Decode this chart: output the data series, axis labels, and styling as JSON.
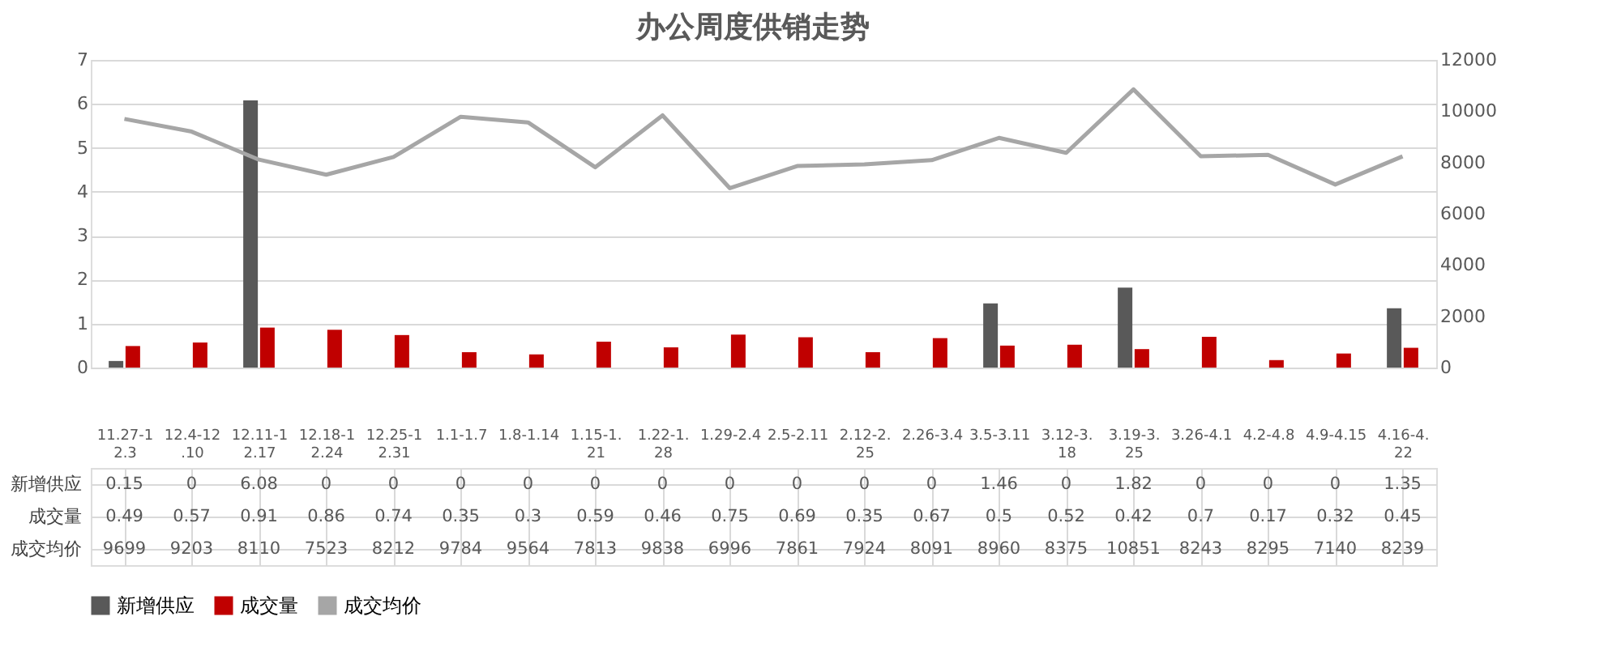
{
  "chart_data": {
    "type": "bar",
    "title": "办公周度供销走势",
    "categories": [
      "11.27-12.3",
      "12.4-12.10",
      "12.11-12.17",
      "12.18-12.24",
      "12.25-12.31",
      "1.1-1.7",
      "1.8-1.14",
      "1.15-1.21",
      "1.22-1.28",
      "1.29-2.4",
      "2.5-2.11",
      "2.12-2.25",
      "2.26-3.4",
      "3.5-3.11",
      "3.12-3.18",
      "3.19-3.25",
      "3.26-4.1",
      "4.2-4.8",
      "4.9-4.15",
      "4.16-4.22"
    ],
    "series": [
      {
        "name": "新增供应",
        "color": "#595959",
        "values": [
          0.15,
          0,
          6.08,
          0,
          0,
          0,
          0,
          0,
          0,
          0,
          0,
          0,
          0,
          1.46,
          0,
          1.82,
          0,
          0,
          0,
          1.35
        ]
      },
      {
        "name": "成交量",
        "color": "#c00000",
        "values": [
          0.49,
          0.57,
          0.91,
          0.86,
          0.74,
          0.35,
          0.3,
          0.59,
          0.46,
          0.75,
          0.69,
          0.35,
          0.67,
          0.5,
          0.52,
          0.42,
          0.7,
          0.17,
          0.32,
          0.45
        ]
      },
      {
        "name": "成交均价",
        "color": "#a6a6a6",
        "type": "line",
        "axis": "y2",
        "values": [
          9699,
          9203,
          8110,
          7523,
          8212,
          9784,
          9564,
          7813,
          9838,
          6996,
          7861,
          7924,
          8091,
          8960,
          8375,
          10851,
          8243,
          8295,
          7140,
          8239
        ]
      }
    ],
    "ylim": [
      0,
      7
    ],
    "yticks": [
      0,
      1,
      2,
      3,
      4,
      5,
      6,
      7
    ],
    "y2lim": [
      0,
      12000
    ],
    "y2ticks": [
      0,
      2000,
      4000,
      6000,
      8000,
      10000,
      12000
    ],
    "grid": "y",
    "legend": "bottom",
    "data_labels": true
  }
}
